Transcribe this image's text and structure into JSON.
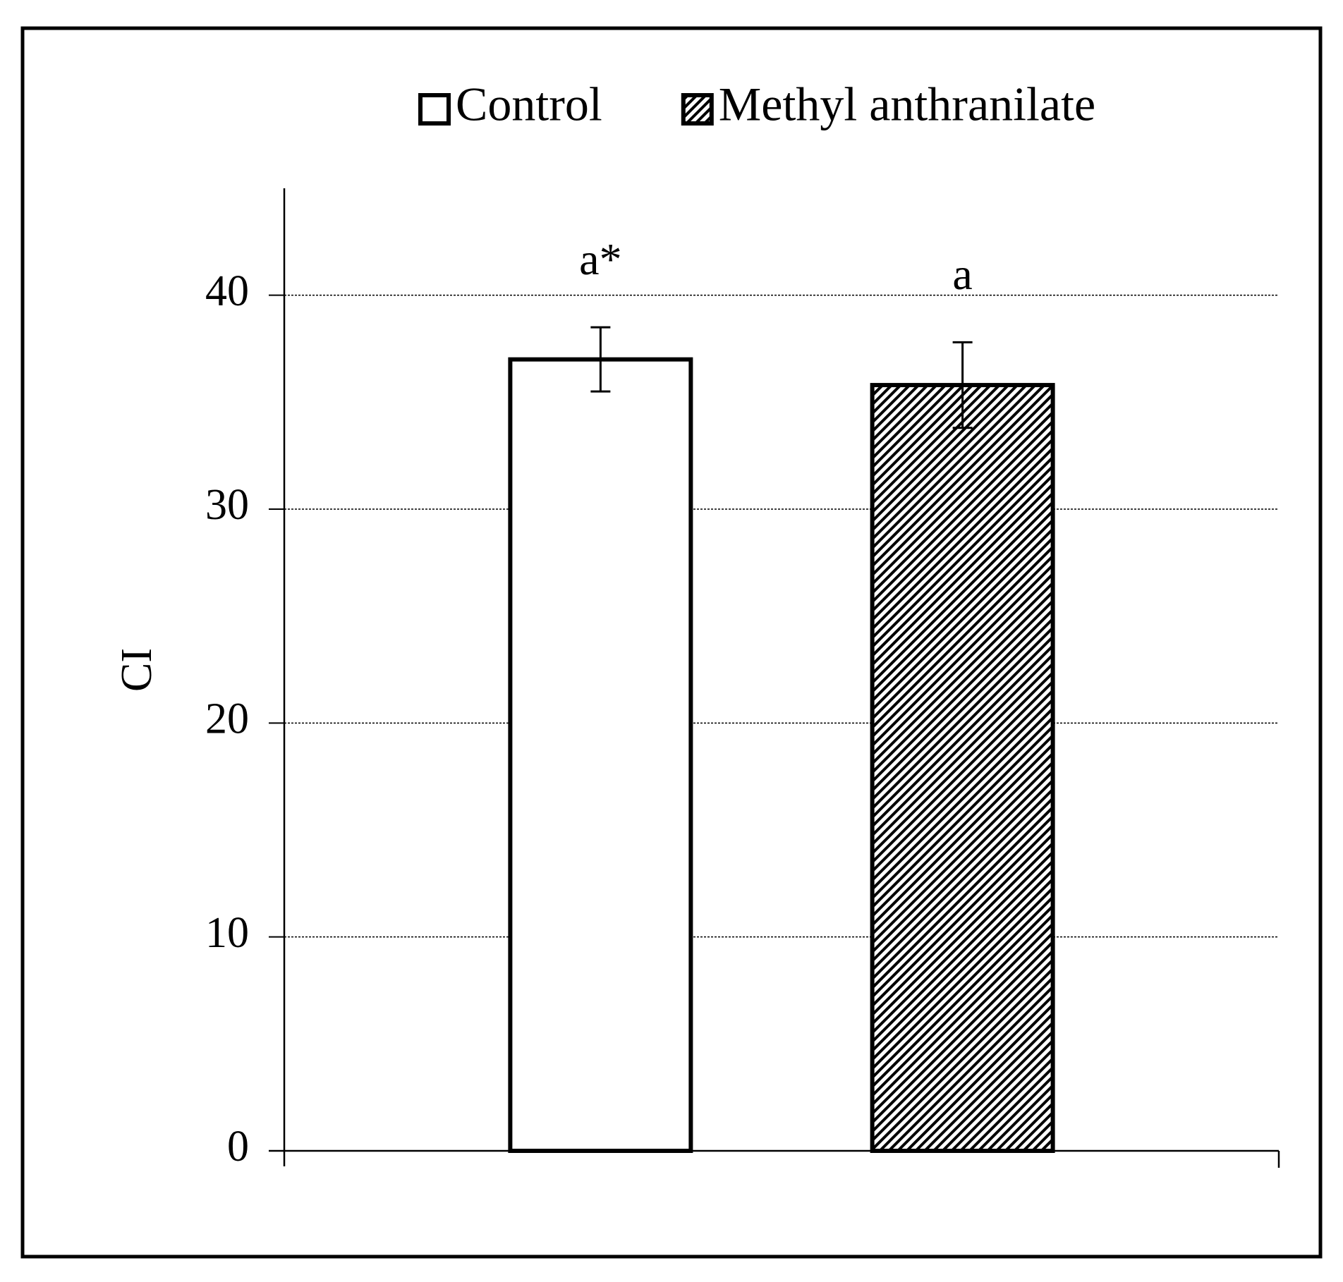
{
  "chart_data": {
    "type": "bar",
    "y_label": "CI",
    "categories": [
      null,
      null
    ],
    "series": [
      {
        "name": "Control",
        "color": "#ffffff",
        "pattern": "solid",
        "values": [
          37,
          null
        ],
        "errors": [
          1.5,
          null
        ],
        "annotations": [
          "a*",
          null
        ]
      },
      {
        "name": "Methyl anthranilate",
        "color": "#000000",
        "pattern": "hatch",
        "values": [
          null,
          35.8
        ],
        "errors": [
          null,
          2
        ],
        "annotations": [
          null,
          "a"
        ]
      }
    ],
    "ylim": [
      0,
      45
    ],
    "yticks": [
      0,
      10,
      20,
      30,
      40
    ],
    "grid": true,
    "legend": "top"
  }
}
